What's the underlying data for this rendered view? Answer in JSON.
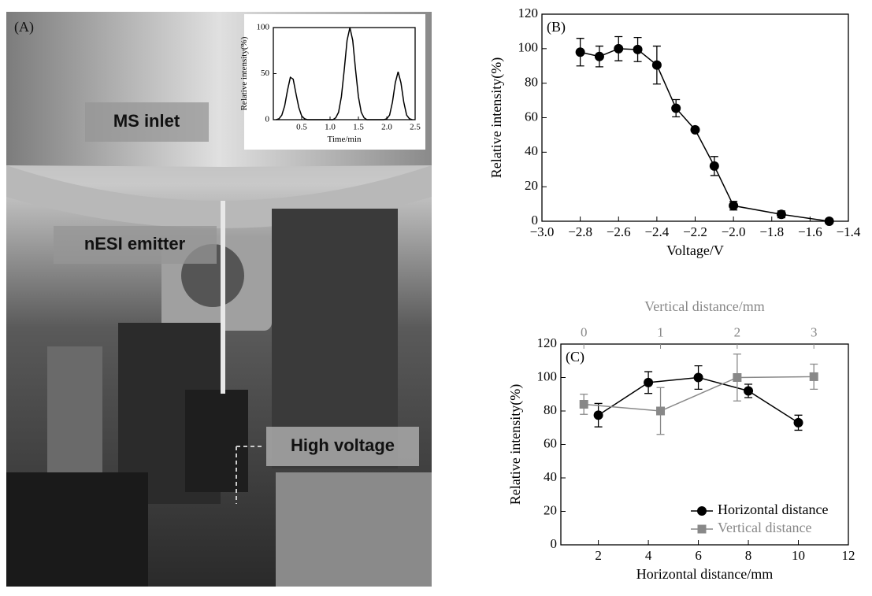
{
  "photo": {
    "panel_label": "(A)",
    "labels": [
      "MS inlet",
      "nESI emitter",
      "High voltage"
    ]
  },
  "chart_data": [
    {
      "type": "line",
      "xlabel": "Time/min",
      "ylabel": "Relative intensity(%)",
      "xlim": [
        0,
        2.5
      ],
      "xticks": [
        0.5,
        {
          "value": 1,
          "label": "1.0"
        },
        1.5,
        {
          "value": 2,
          "label": "2.0"
        },
        2.5
      ],
      "ylim": [
        0,
        100
      ],
      "yticks": [
        0,
        50,
        100
      ],
      "x": [
        0.05,
        0.1,
        0.15,
        0.2,
        0.25,
        0.3,
        0.35,
        0.4,
        0.45,
        0.5,
        0.55,
        0.6,
        0.7,
        0.8,
        0.9,
        1.0,
        1.05,
        1.1,
        1.15,
        1.2,
        1.25,
        1.3,
        1.35,
        1.4,
        1.45,
        1.5,
        1.55,
        1.6,
        1.65,
        1.7,
        1.8,
        1.9,
        1.95,
        2.0,
        2.05,
        2.1,
        2.15,
        2.2,
        2.25,
        2.3,
        2.35,
        2.4,
        2.45
      ],
      "series": [
        {
          "color": "#000000",
          "values": [
            0,
            1,
            5,
            15,
            32,
            46,
            44,
            28,
            13,
            4,
            1,
            0,
            0,
            0,
            0,
            0,
            0,
            2,
            8,
            25,
            54,
            86,
            100,
            86,
            54,
            25,
            8,
            2,
            0,
            0,
            0,
            0,
            0,
            1,
            5,
            19,
            40,
            52,
            40,
            19,
            5,
            1,
            0
          ]
        }
      ]
    },
    {
      "type": "line",
      "panel_label": "(B)",
      "xlabel": "Voltage/V",
      "ylabel": "Relative intensity(%)",
      "xlim": [
        -3.0,
        -1.4
      ],
      "xticks": [
        {
          "value": -3.0,
          "label": "−3.0"
        },
        {
          "value": -2.8,
          "label": "−2.8"
        },
        {
          "value": -2.6,
          "label": "−2.6"
        },
        {
          "value": -2.4,
          "label": "−2.4"
        },
        {
          "value": -2.2,
          "label": "−2.2"
        },
        {
          "value": -2.0,
          "label": "−2.0"
        },
        {
          "value": -1.8,
          "label": "−1.8"
        },
        {
          "value": -1.6,
          "label": "−1.6"
        },
        {
          "value": -1.4,
          "label": "−1.4"
        }
      ],
      "ylim": [
        0,
        120
      ],
      "yticks": [
        0,
        20,
        40,
        60,
        80,
        100,
        120
      ],
      "x": [
        -2.8,
        -2.7,
        -2.6,
        -2.5,
        -2.4,
        -2.3,
        -2.2,
        -2.1,
        -2.0,
        -1.75,
        -1.5
      ],
      "series": [
        {
          "color": "#000000",
          "marker": "circle",
          "values": [
            98,
            95.5,
            100,
            99.5,
            90.5,
            65.5,
            53,
            32,
            9,
            4,
            0
          ],
          "errors": [
            8,
            6,
            7,
            7,
            11,
            5,
            1,
            5.5,
            2.5,
            2,
            1
          ]
        }
      ]
    },
    {
      "type": "line",
      "panel_label": "(C)",
      "xlabel": "Horizontal distance/mm",
      "ylabel": "Relative intensity(%)",
      "x2label": "Vertical distance/mm",
      "x2color": "#888888",
      "xlim": [
        0.5,
        12
      ],
      "xticks": [
        2,
        4,
        6,
        8,
        10,
        12
      ],
      "x2lim": [
        -0.3,
        3.45
      ],
      "x2ticks": [
        0,
        1,
        2,
        3
      ],
      "ylim": [
        0,
        120
      ],
      "yticks": [
        0,
        20,
        40,
        60,
        80,
        100,
        120
      ],
      "legend": "lower right",
      "series": [
        {
          "name": "Horizontal distance",
          "color": "#000000",
          "marker": "circle",
          "x": [
            2,
            4,
            6,
            8,
            10
          ],
          "values": [
            77.5,
            97,
            100,
            92,
            73
          ],
          "errors": [
            7,
            6.5,
            7,
            4,
            4.5
          ]
        },
        {
          "name": "Vertical distance",
          "color": "#888888",
          "marker": "square",
          "axis": "x2",
          "x": [
            0,
            1,
            2,
            3
          ],
          "values": [
            84,
            80,
            100,
            100.5
          ],
          "errors": [
            6,
            14,
            14,
            7.5
          ]
        }
      ]
    }
  ]
}
